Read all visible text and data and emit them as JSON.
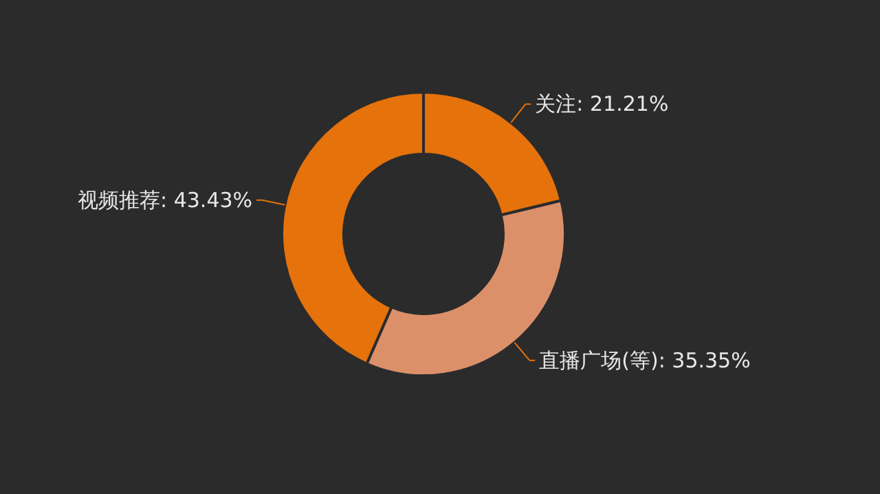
{
  "chart_data": {
    "type": "donut",
    "categories": [
      "关注",
      "直播广场(等)",
      "视频推荐"
    ],
    "values": [
      21.21,
      35.35,
      43.43
    ],
    "value_labels": [
      "21.21%",
      "35.35%",
      "43.43%"
    ],
    "colors": [
      "#e5720b",
      "#dc9069",
      "#e5720b"
    ]
  }
}
